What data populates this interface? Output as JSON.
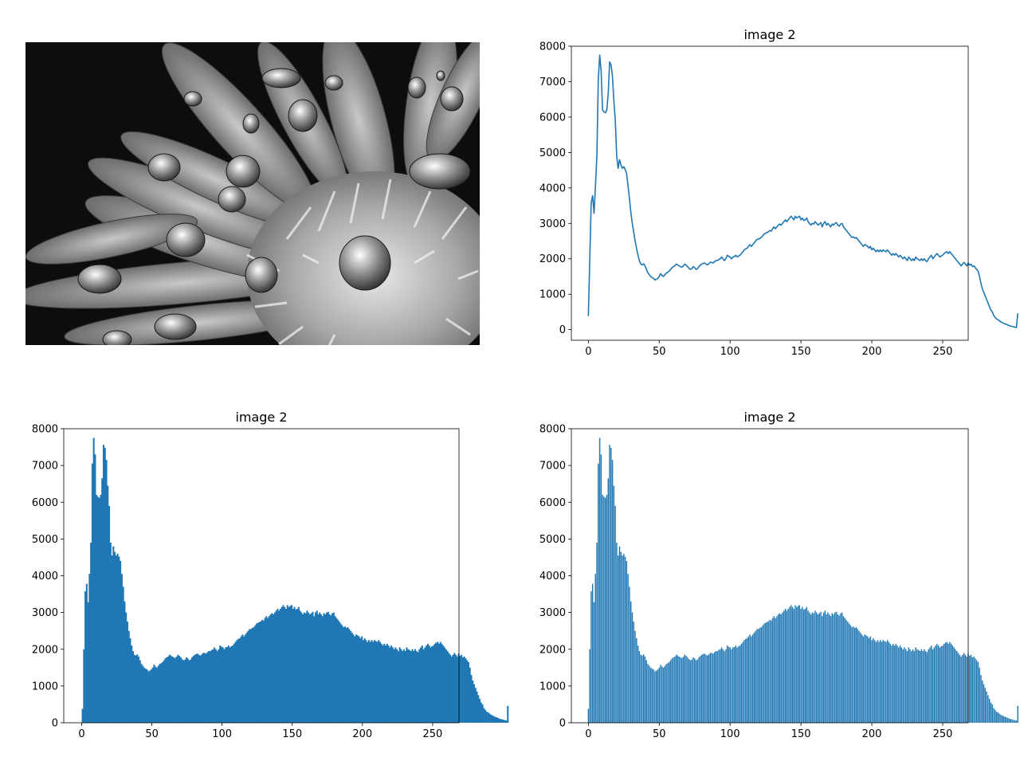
{
  "figure": {
    "photo": {
      "alt": "grayscale photo of a daisy with water droplets",
      "icon": "grayscale-flower-photo"
    }
  },
  "chart_data": [
    {
      "id": "line",
      "type": "line",
      "title": "image 2",
      "xlabel": "",
      "ylabel": "",
      "xlim": [
        -12,
        268
      ],
      "ylim": [
        -300,
        8000
      ],
      "xticks": [
        0,
        50,
        100,
        150,
        200,
        250
      ],
      "yticks": [
        0,
        1000,
        2000,
        3000,
        4000,
        5000,
        6000,
        7000,
        8000
      ],
      "color": "#1f77b4",
      "grid": false,
      "x_start": 0,
      "values": [
        380,
        2000,
        3580,
        3780,
        3280,
        4050,
        4900,
        7050,
        7750,
        7300,
        6200,
        6150,
        6120,
        6200,
        6650,
        7560,
        7480,
        7150,
        6450,
        5900,
        4900,
        4550,
        4800,
        4650,
        4550,
        4600,
        4520,
        4400,
        4050,
        3700,
        3300,
        3000,
        2750,
        2500,
        2300,
        2100,
        1950,
        1850,
        1830,
        1860,
        1800,
        1700,
        1600,
        1550,
        1500,
        1470,
        1450,
        1400,
        1420,
        1450,
        1500,
        1580,
        1530,
        1500,
        1550,
        1600,
        1620,
        1650,
        1700,
        1750,
        1780,
        1800,
        1850,
        1830,
        1800,
        1780,
        1760,
        1800,
        1850,
        1820,
        1780,
        1730,
        1700,
        1720,
        1780,
        1750,
        1700,
        1720,
        1780,
        1820,
        1850,
        1870,
        1880,
        1850,
        1830,
        1860,
        1900,
        1900,
        1880,
        1920,
        1950,
        1950,
        1980,
        2000,
        2050,
        2000,
        1950,
        2000,
        2100,
        2070,
        2050,
        2000,
        2050,
        2060,
        2100,
        2050,
        2080,
        2100,
        2150,
        2200,
        2250,
        2280,
        2300,
        2350,
        2400,
        2350,
        2400,
        2450,
        2500,
        2550,
        2550,
        2580,
        2600,
        2650,
        2700,
        2720,
        2740,
        2760,
        2800,
        2780,
        2850,
        2900,
        2850,
        2900,
        2950,
        2980,
        2950,
        3000,
        3050,
        3100,
        3050,
        3100,
        3150,
        3200,
        3150,
        3100,
        3200,
        3150,
        3180,
        3200,
        3100,
        3150,
        3080,
        3100,
        3150,
        3050,
        3000,
        2950,
        3000,
        2980,
        3050,
        3000,
        2950,
        2980,
        3020,
        2900,
        3000,
        3050,
        2950,
        3000,
        2950,
        2900,
        2980,
        2950,
        3000,
        3020,
        2950,
        2920,
        2980,
        3000,
        2900,
        2850,
        2800,
        2750,
        2700,
        2650,
        2600,
        2620,
        2580,
        2600,
        2550,
        2500,
        2450,
        2400,
        2350,
        2400,
        2380,
        2350,
        2300,
        2350,
        2250,
        2300,
        2250,
        2200,
        2250,
        2200,
        2250,
        2200,
        2250,
        2220,
        2200,
        2250,
        2200,
        2150,
        2100,
        2150,
        2100,
        2150,
        2100,
        2050,
        2100,
        2050,
        2000,
        2050,
        2000,
        1950,
        2050,
        2000,
        1950,
        2000,
        1950,
        2050,
        2000,
        1980,
        1950,
        2000,
        1950,
        2000,
        1950,
        1920,
        2000,
        2050,
        2100,
        2000,
        2050,
        2100,
        2150,
        2100,
        2050,
        2080,
        2100,
        2150,
        2180,
        2200,
        2150,
        2200,
        2150,
        2100,
        2050,
        2000,
        1950,
        1900,
        1850,
        1800,
        1850,
        1900,
        1850,
        1800,
        1880,
        1820,
        1850,
        1780,
        1800,
        1750,
        1700,
        1650,
        1500,
        1300,
        1150,
        1050,
        950,
        850,
        750,
        650,
        550,
        500,
        400,
        350,
        300,
        280,
        250,
        220,
        200,
        180,
        160,
        150,
        130,
        110,
        100,
        90,
        80,
        70,
        60,
        460
      ],
      "values_note": ""
    },
    {
      "id": "hist",
      "type": "bar",
      "title": "image 2",
      "xlabel": "",
      "ylabel": "",
      "xlim": [
        -12.8,
        268.8
      ],
      "ylim": [
        0,
        8000
      ],
      "xticks": [
        0,
        50,
        100,
        150,
        200,
        250
      ],
      "yticks": [
        0,
        1000,
        2000,
        3000,
        4000,
        5000,
        6000,
        7000,
        8000
      ],
      "color": "#1f77b4",
      "grid": false,
      "bins": 256,
      "bin_range": [
        0,
        256
      ]
    },
    {
      "id": "bars",
      "type": "bar",
      "title": "image 2",
      "xlabel": "",
      "ylabel": "",
      "xlim": [
        -12,
        268
      ],
      "ylim": [
        0,
        8000
      ],
      "xticks": [
        0,
        50,
        100,
        150,
        200,
        250
      ],
      "yticks": [
        0,
        1000,
        2000,
        3000,
        4000,
        5000,
        6000,
        7000,
        8000
      ],
      "color": "#1f77b4",
      "grid": false,
      "bar_width": 0.8
    }
  ]
}
